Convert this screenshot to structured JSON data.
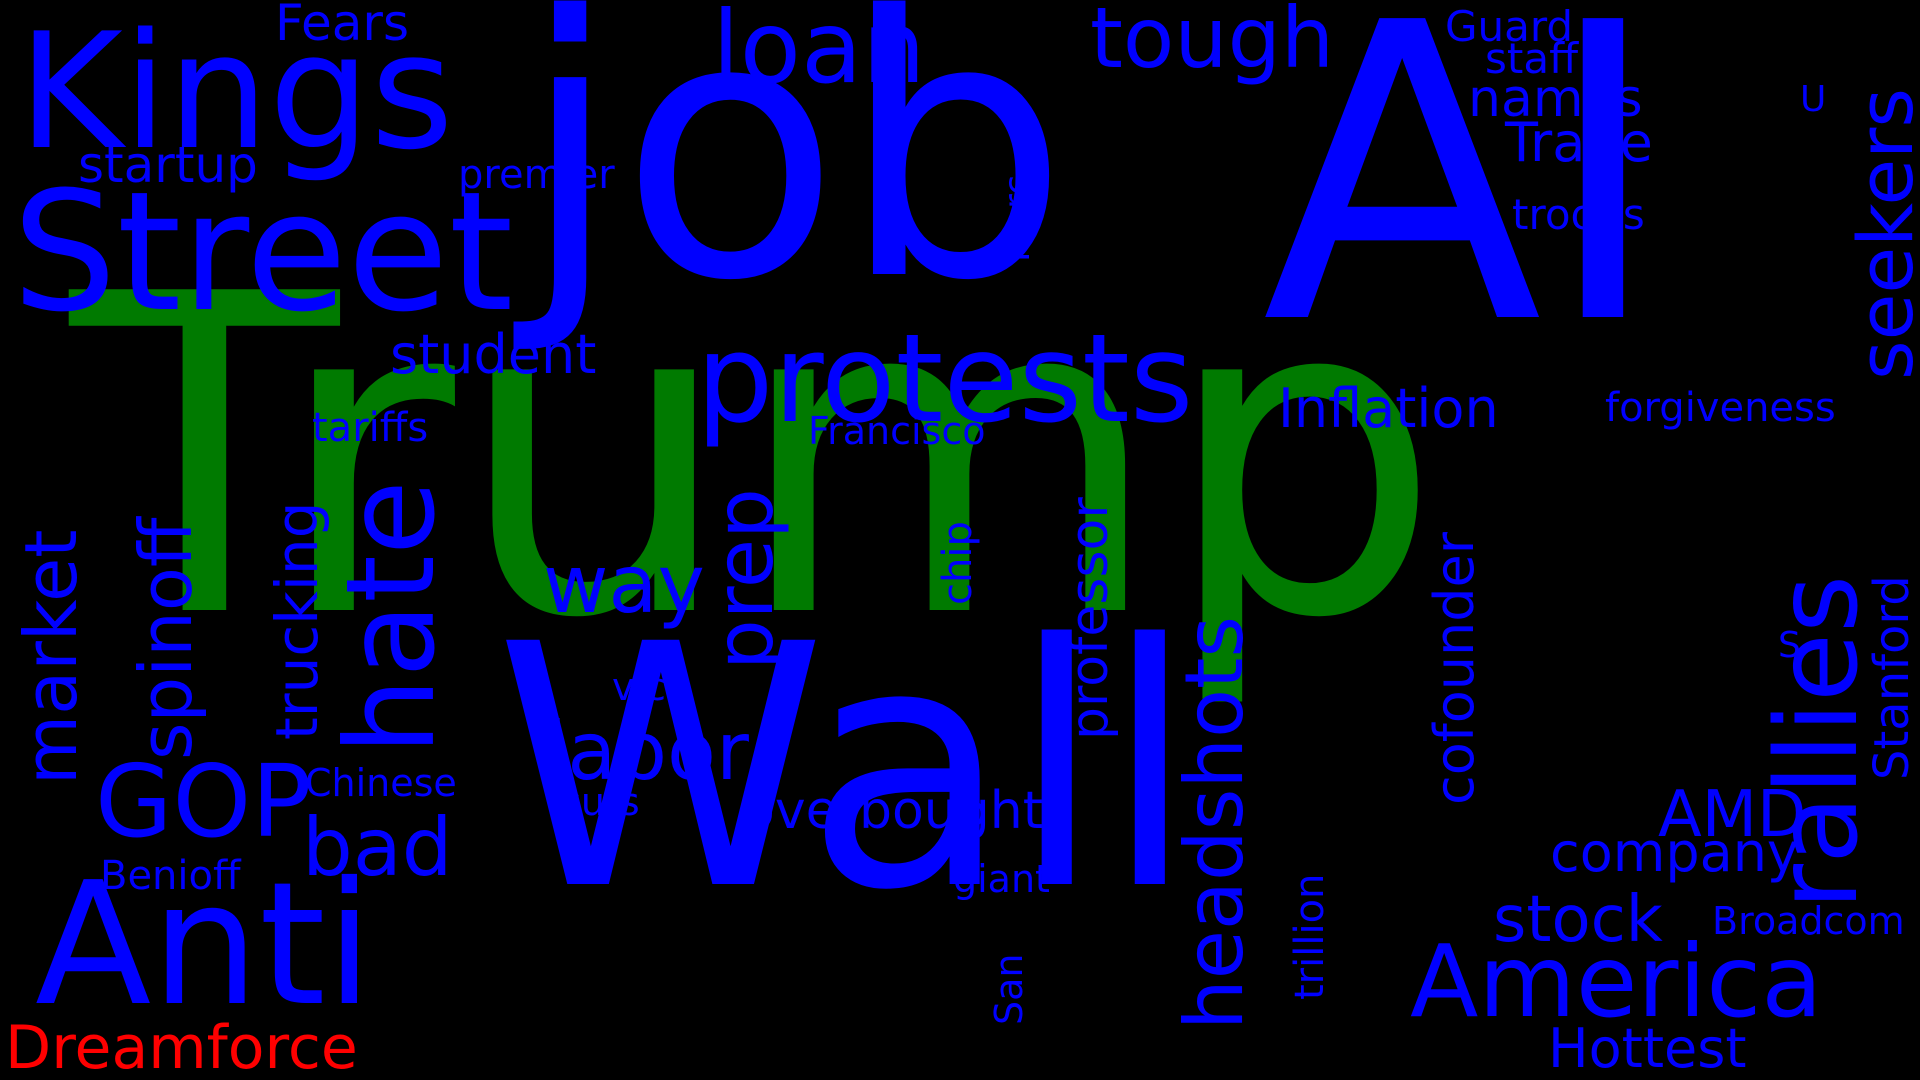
{
  "colors": {
    "background": "#000000",
    "blue": "#0000ff",
    "green": "#007a00",
    "red": "#ff0000"
  },
  "words": {
    "trump": {
      "text": "Trump",
      "color": "green"
    },
    "wall": {
      "text": "Wall",
      "color": "blue"
    },
    "job": {
      "text": "job",
      "color": "blue"
    },
    "ai": {
      "text": "AI",
      "color": "blue"
    },
    "kings": {
      "text": "Kings",
      "color": "blue"
    },
    "street": {
      "text": "Street",
      "color": "blue"
    },
    "anti": {
      "text": "Anti",
      "color": "blue"
    },
    "protests": {
      "text": "protests",
      "color": "blue"
    },
    "america": {
      "text": "America",
      "color": "blue"
    },
    "rallies": {
      "text": "rallies",
      "color": "blue"
    },
    "hate": {
      "text": "hate",
      "color": "blue"
    },
    "loan": {
      "text": "loan",
      "color": "blue"
    },
    "tough": {
      "text": "tough",
      "color": "blue"
    },
    "seekers": {
      "text": "seekers",
      "color": "blue"
    },
    "gop": {
      "text": "GOP",
      "color": "blue"
    },
    "headshots": {
      "text": "headshots",
      "color": "blue"
    },
    "spinoff": {
      "text": "spinoff",
      "color": "blue"
    },
    "market": {
      "text": "market",
      "color": "blue"
    },
    "bad": {
      "text": "bad",
      "color": "blue"
    },
    "labor": {
      "text": "labor",
      "color": "blue"
    },
    "way": {
      "text": "way",
      "color": "blue"
    },
    "prep": {
      "text": "prep",
      "color": "blue"
    },
    "stock": {
      "text": "stock",
      "color": "blue"
    },
    "amd": {
      "text": "AMD",
      "color": "blue"
    },
    "trucking": {
      "text": "trucking",
      "color": "blue"
    },
    "dreamforce": {
      "text": "Dreamforce",
      "color": "red"
    },
    "inflation": {
      "text": "Inflation",
      "color": "blue"
    },
    "overbought": {
      "text": "overbought",
      "color": "blue"
    },
    "company": {
      "text": "company",
      "color": "blue"
    },
    "cofounder": {
      "text": "cofounder",
      "color": "blue"
    },
    "professor": {
      "text": "professor",
      "color": "blue"
    },
    "hottest": {
      "text": "Hottest",
      "color": "blue"
    },
    "student": {
      "text": "student",
      "color": "blue"
    },
    "trade": {
      "text": "Trade",
      "color": "blue"
    },
    "names": {
      "text": "names",
      "color": "blue"
    },
    "startup": {
      "text": "startup",
      "color": "blue"
    },
    "stanford": {
      "text": "Stanford",
      "color": "blue"
    },
    "fears": {
      "text": "Fears",
      "color": "blue"
    },
    "guard": {
      "text": "Guard",
      "color": "blue"
    },
    "staff": {
      "text": "staff",
      "color": "blue"
    },
    "troops": {
      "text": "troops",
      "color": "blue"
    },
    "forgiveness": {
      "text": "forgiveness",
      "color": "blue"
    },
    "tariffs": {
      "text": "tariffs",
      "color": "blue"
    },
    "francisco": {
      "text": "Francisco",
      "color": "blue"
    },
    "premier": {
      "text": "premier",
      "color": "blue"
    },
    "chinese": {
      "text": "Chinese",
      "color": "blue"
    },
    "benioff": {
      "text": "Benioff",
      "color": "blue"
    },
    "broadcom": {
      "text": "Broadcom",
      "color": "blue"
    },
    "giant": {
      "text": "giant",
      "color": "blue"
    },
    "cuts": {
      "text": "cuts",
      "color": "blue"
    },
    "vice": {
      "text": "vice",
      "color": "blue"
    },
    "trillion": {
      "text": "trillion",
      "color": "blue"
    },
    "chip": {
      "text": "chip",
      "color": "blue"
    },
    "marc": {
      "text": "Marc",
      "color": "blue"
    },
    "san": {
      "text": "San",
      "color": "blue"
    },
    "u": {
      "text": "U",
      "color": "blue"
    },
    "s": {
      "text": "S",
      "color": "blue"
    }
  }
}
